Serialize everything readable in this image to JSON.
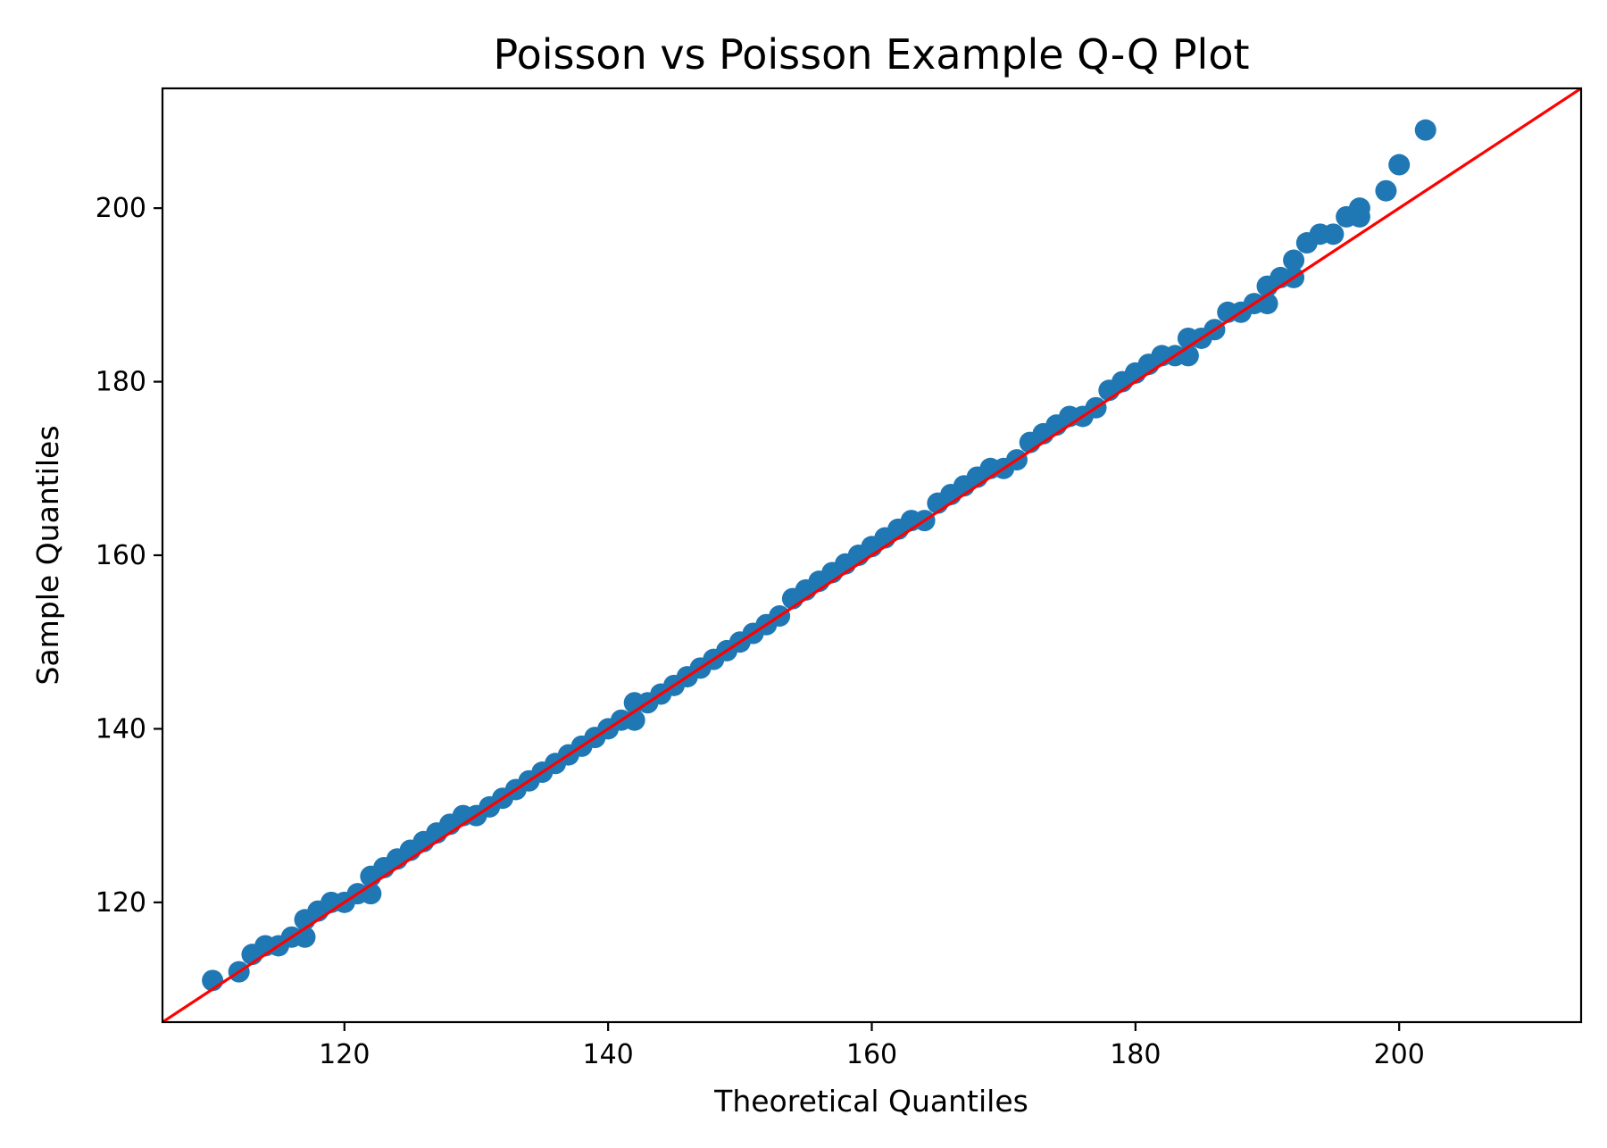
{
  "chart_data": {
    "type": "scatter",
    "title": "Poisson vs Poisson Example Q-Q Plot",
    "xlabel": "Theoretical Quantiles",
    "ylabel": "Sample Quantiles",
    "xlim": [
      106.2,
      213.8
    ],
    "ylim": [
      106.2,
      213.8
    ],
    "xticks": [
      120,
      140,
      160,
      180,
      200
    ],
    "yticks": [
      120,
      140,
      160,
      180,
      200
    ],
    "grid": false,
    "colors": {
      "points": "#1f77b4",
      "reference_line": "#ff0000"
    },
    "reference_line": {
      "slope": 1,
      "intercept": 0
    },
    "series": [
      {
        "x": [
          110,
          112,
          113,
          114,
          115,
          116,
          117,
          117,
          118,
          119,
          120,
          121,
          122,
          122,
          123,
          124,
          125,
          126,
          127,
          128,
          129,
          130,
          131,
          132,
          133,
          134,
          135,
          136,
          137,
          138,
          139,
          140,
          141,
          142,
          142,
          143,
          144,
          145,
          146,
          147,
          148,
          149,
          150,
          151,
          152,
          153,
          154,
          155,
          156,
          157,
          158,
          159,
          160,
          161,
          162,
          163,
          164,
          165,
          166,
          167,
          168,
          169,
          170,
          171,
          172,
          173,
          174,
          175,
          176,
          177,
          178,
          179,
          180,
          181,
          182,
          183,
          184,
          184,
          185,
          186,
          187,
          188,
          189,
          190,
          190,
          191,
          192,
          192,
          193,
          194,
          195,
          196,
          197,
          197,
          199,
          200,
          202
        ],
        "y": [
          111,
          112,
          114,
          115,
          115,
          116,
          116,
          118,
          119,
          120,
          120,
          121,
          121,
          123,
          124,
          125,
          126,
          127,
          128,
          129,
          130,
          130,
          131,
          132,
          133,
          134,
          135,
          136,
          137,
          138,
          139,
          140,
          141,
          141,
          143,
          143,
          144,
          145,
          146,
          147,
          148,
          149,
          150,
          151,
          152,
          153,
          155,
          156,
          157,
          158,
          159,
          160,
          161,
          162,
          163,
          164,
          164,
          166,
          167,
          168,
          169,
          170,
          170,
          171,
          173,
          174,
          175,
          176,
          176,
          177,
          179,
          180,
          181,
          182,
          183,
          183,
          183,
          185,
          185,
          186,
          188,
          188,
          189,
          189,
          191,
          192,
          192,
          194,
          196,
          197,
          197,
          199,
          199,
          200,
          202,
          205,
          209
        ]
      }
    ]
  }
}
